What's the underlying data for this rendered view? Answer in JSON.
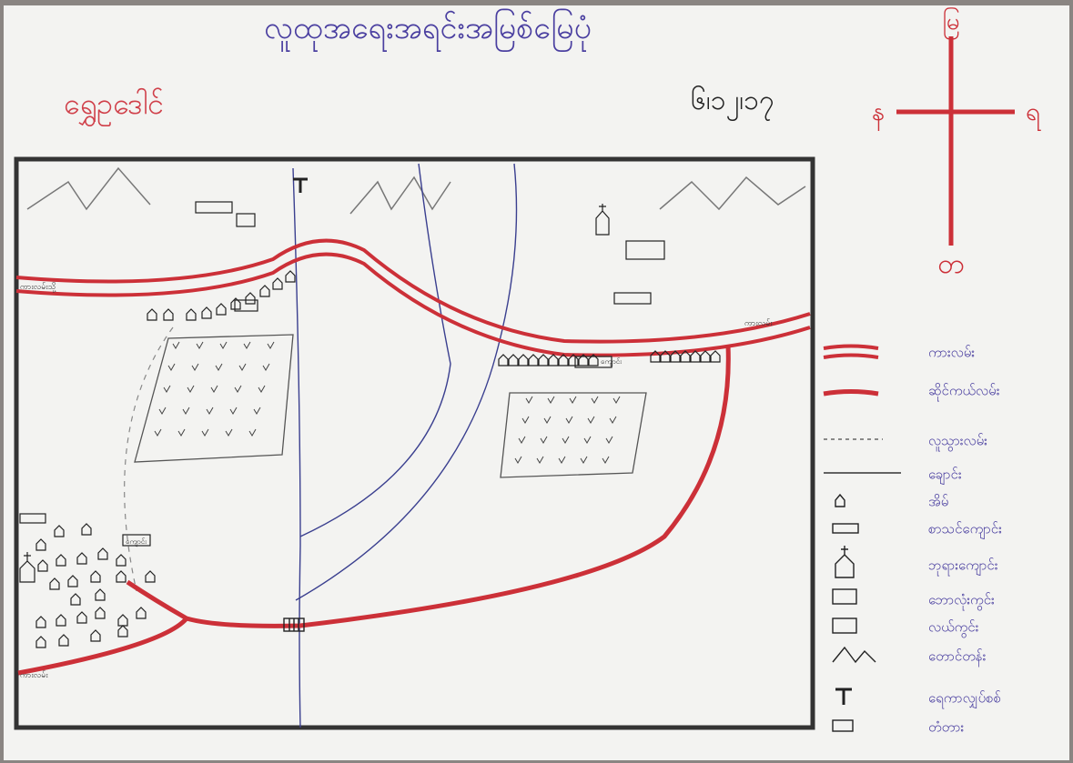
{
  "title": "လူထုအရေးအရင်းအမြစ်မြေပုံ",
  "village": "ရွှေဥဒေါင်",
  "date": "၆၊၁၂၊၁၇",
  "compass": {
    "north": "မြ",
    "south": "တ",
    "east": "ရ",
    "west": "န"
  },
  "map_labels": {
    "road_west": "ကားလမ်းသို့",
    "road_east": "ကားလမ်း",
    "road_southwest": "ကားလမ်း",
    "school_south": "ကျောင်း",
    "school_east": "ကျောင်း"
  },
  "legend": [
    "ကားလမ်း",
    "ဆိုင်ကယ်လမ်း",
    "လူသွားလမ်း",
    "ချောင်း",
    "အိမ်",
    "စာသင်ကျောင်း",
    "ဘုရားကျောင်း",
    "ဘောလုံးကွင်း",
    "လယ်ကွင်း",
    "တောင်တန်း",
    "ရေကာလျှပ်စစ်",
    "တံတား"
  ]
}
